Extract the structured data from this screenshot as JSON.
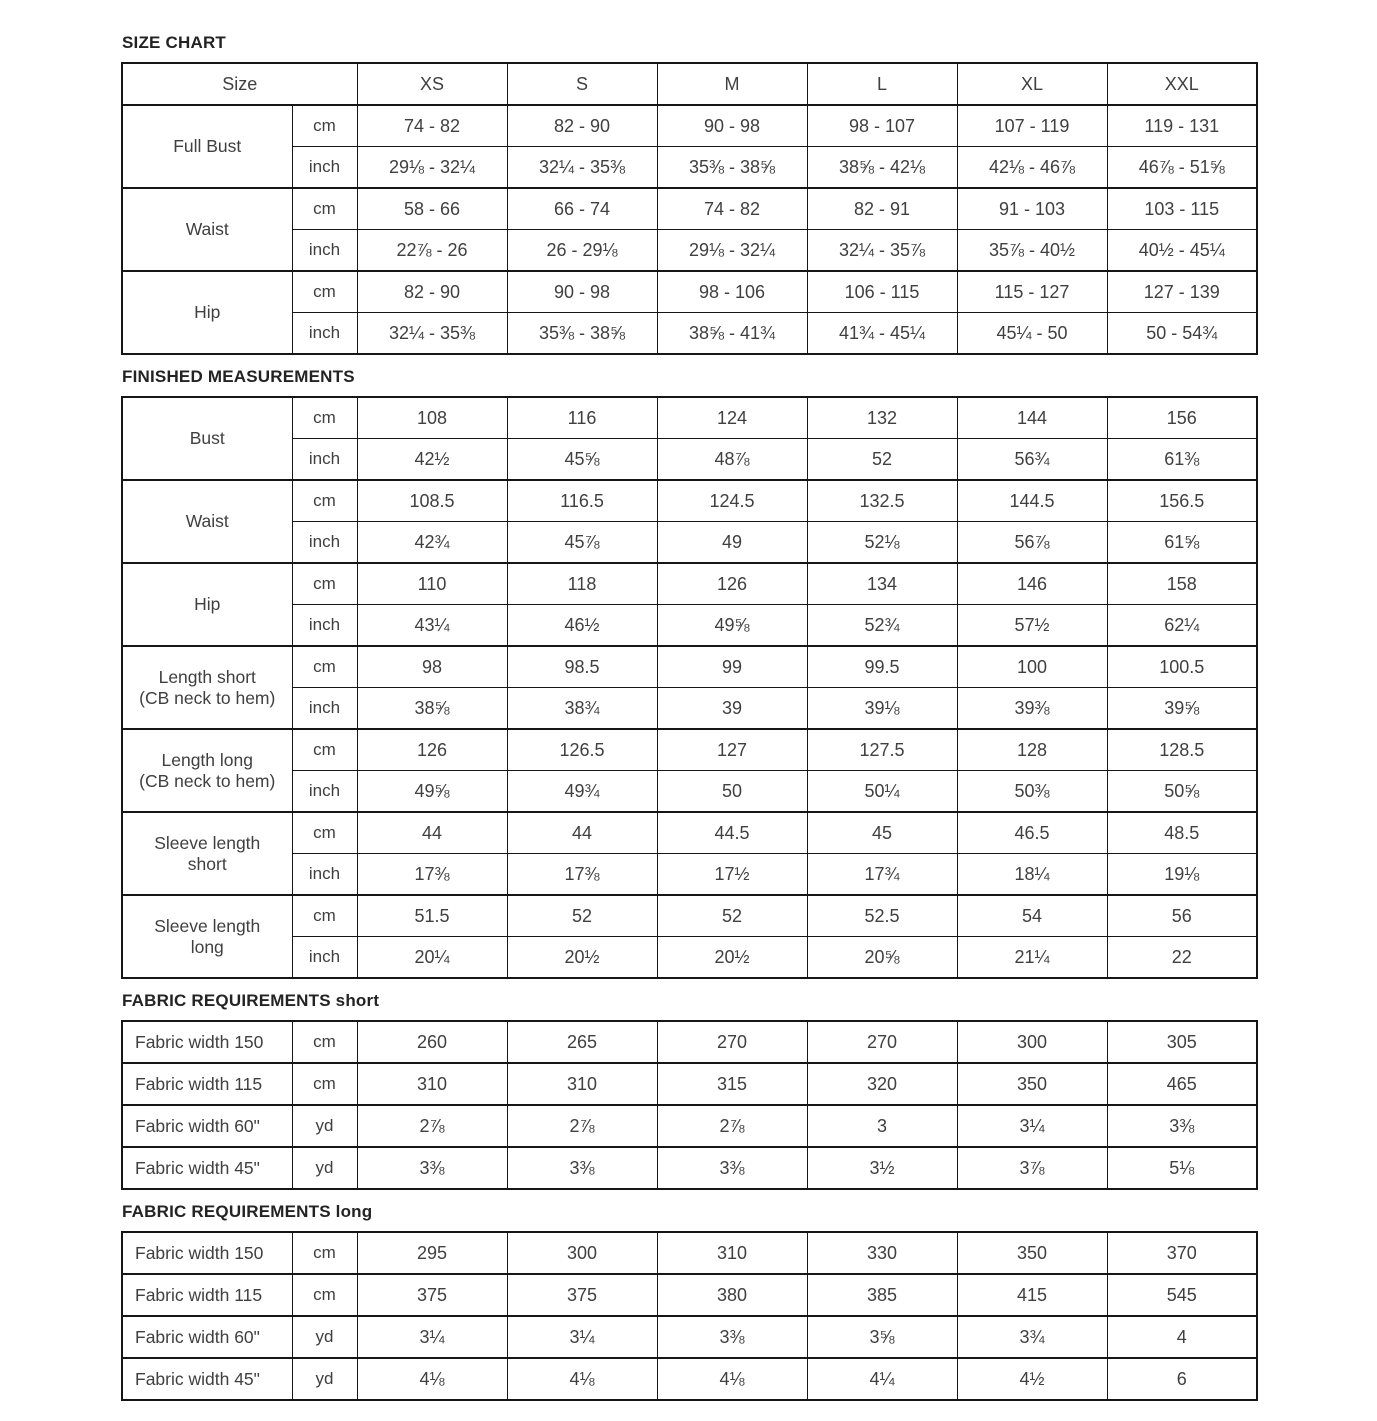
{
  "sections": [
    {
      "id": "size-chart",
      "heading": "SIZE CHART",
      "header": {
        "label": "Size",
        "sizes": [
          "XS",
          "S",
          "M",
          "L",
          "XL",
          "XXL"
        ]
      },
      "rows": [
        {
          "label": [
            "Full Bust"
          ],
          "subs": [
            {
              "unit": "cm",
              "values": [
                "74 - 82",
                "82 - 90",
                "90 - 98",
                "98 - 107",
                "107 - 119",
                "119 - 131"
              ]
            },
            {
              "unit": "inch",
              "values": [
                "29⅛ - 32¼",
                "32¼ - 35⅜",
                "35⅜ - 38⅝",
                "38⅝ - 42⅛",
                "42⅛ - 46⅞",
                "46⅞ - 51⅝"
              ]
            }
          ]
        },
        {
          "label": [
            "Waist"
          ],
          "subs": [
            {
              "unit": "cm",
              "values": [
                "58 - 66",
                "66 - 74",
                "74 - 82",
                "82 - 91",
                "91 - 103",
                "103 - 115"
              ]
            },
            {
              "unit": "inch",
              "values": [
                "22⅞ - 26",
                "26 - 29⅛",
                "29⅛ - 32¼",
                "32¼ - 35⅞",
                "35⅞ - 40½",
                "40½ - 45¼"
              ]
            }
          ]
        },
        {
          "label": [
            "Hip"
          ],
          "subs": [
            {
              "unit": "cm",
              "values": [
                "82 - 90",
                "90 - 98",
                "98 - 106",
                "106 - 115",
                "115 - 127",
                "127 - 139"
              ]
            },
            {
              "unit": "inch",
              "values": [
                "32¼ - 35⅜",
                "35⅜ - 38⅝",
                "38⅝ - 41¾",
                "41¾ - 45¼",
                "45¼ - 50",
                "50 - 54¾"
              ]
            }
          ]
        }
      ]
    },
    {
      "id": "finished-measurements",
      "heading": "FINISHED MEASUREMENTS",
      "rows": [
        {
          "label": [
            "Bust"
          ],
          "subs": [
            {
              "unit": "cm",
              "values": [
                "108",
                "116",
                "124",
                "132",
                "144",
                "156"
              ]
            },
            {
              "unit": "inch",
              "values": [
                "42½",
                "45⅝",
                "48⅞",
                "52",
                "56¾",
                "61⅜"
              ]
            }
          ]
        },
        {
          "label": [
            "Waist"
          ],
          "subs": [
            {
              "unit": "cm",
              "values": [
                "108.5",
                "116.5",
                "124.5",
                "132.5",
                "144.5",
                "156.5"
              ]
            },
            {
              "unit": "inch",
              "values": [
                "42¾",
                "45⅞",
                "49",
                "52⅛",
                "56⅞",
                "61⅝"
              ]
            }
          ]
        },
        {
          "label": [
            "Hip"
          ],
          "subs": [
            {
              "unit": "cm",
              "values": [
                "110",
                "118",
                "126",
                "134",
                "146",
                "158"
              ]
            },
            {
              "unit": "inch",
              "values": [
                "43¼",
                "46½",
                "49⅝",
                "52¾",
                "57½",
                "62¼"
              ]
            }
          ]
        },
        {
          "label": [
            "Length short",
            "(CB neck to hem)"
          ],
          "subs": [
            {
              "unit": "cm",
              "values": [
                "98",
                "98.5",
                "99",
                "99.5",
                "100",
                "100.5"
              ]
            },
            {
              "unit": "inch",
              "values": [
                "38⅝",
                "38¾",
                "39",
                "39⅛",
                "39⅜",
                "39⅝"
              ]
            }
          ]
        },
        {
          "label": [
            "Length long",
            "(CB neck to hem)"
          ],
          "subs": [
            {
              "unit": "cm",
              "values": [
                "126",
                "126.5",
                "127",
                "127.5",
                "128",
                "128.5"
              ]
            },
            {
              "unit": "inch",
              "values": [
                "49⅝",
                "49¾",
                "50",
                "50¼",
                "50⅜",
                "50⅝"
              ]
            }
          ]
        },
        {
          "label": [
            "Sleeve length",
            "short"
          ],
          "subs": [
            {
              "unit": "cm",
              "values": [
                "44",
                "44",
                "44.5",
                "45",
                "46.5",
                "48.5"
              ]
            },
            {
              "unit": "inch",
              "values": [
                "17⅜",
                "17⅜",
                "17½",
                "17¾",
                "18¼",
                "19⅛"
              ]
            }
          ]
        },
        {
          "label": [
            "Sleeve length",
            "long"
          ],
          "subs": [
            {
              "unit": "cm",
              "values": [
                "51.5",
                "52",
                "52",
                "52.5",
                "54",
                "56"
              ]
            },
            {
              "unit": "inch",
              "values": [
                "20¼",
                "20½",
                "20½",
                "20⅝",
                "21¼",
                "22"
              ]
            }
          ]
        }
      ]
    },
    {
      "id": "fabric-requirements-short",
      "heading": "FABRIC REQUIREMENTS short",
      "rows": [
        {
          "label": [
            "Fabric width 150"
          ],
          "subs": [
            {
              "unit": "cm",
              "values": [
                "260",
                "265",
                "270",
                "270",
                "300",
                "305"
              ]
            }
          ]
        },
        {
          "label": [
            "Fabric width 115"
          ],
          "subs": [
            {
              "unit": "cm",
              "values": [
                "310",
                "310",
                "315",
                "320",
                "350",
                "465"
              ]
            }
          ]
        },
        {
          "label": [
            "Fabric width 60\""
          ],
          "subs": [
            {
              "unit": "yd",
              "values": [
                "2⅞",
                "2⅞",
                "2⅞",
                "3",
                "3¼",
                "3⅜"
              ]
            }
          ]
        },
        {
          "label": [
            "Fabric width 45\""
          ],
          "subs": [
            {
              "unit": "yd",
              "values": [
                "3⅜",
                "3⅜",
                "3⅜",
                "3½",
                "3⅞",
                "5⅛"
              ]
            }
          ]
        }
      ]
    },
    {
      "id": "fabric-requirements-long",
      "heading": "FABRIC REQUIREMENTS long",
      "rows": [
        {
          "label": [
            "Fabric width 150"
          ],
          "subs": [
            {
              "unit": "cm",
              "values": [
                "295",
                "300",
                "310",
                "330",
                "350",
                "370"
              ]
            }
          ]
        },
        {
          "label": [
            "Fabric width 115"
          ],
          "subs": [
            {
              "unit": "cm",
              "values": [
                "375",
                "375",
                "380",
                "385",
                "415",
                "545"
              ]
            }
          ]
        },
        {
          "label": [
            "Fabric width 60\""
          ],
          "subs": [
            {
              "unit": "yd",
              "values": [
                "3¼",
                "3¼",
                "3⅜",
                "3⅝",
                "3¾",
                "4"
              ]
            }
          ]
        },
        {
          "label": [
            "Fabric width 45\""
          ],
          "subs": [
            {
              "unit": "yd",
              "values": [
                "4⅛",
                "4⅛",
                "4⅛",
                "4¼",
                "4½",
                "6"
              ]
            }
          ]
        }
      ]
    }
  ]
}
